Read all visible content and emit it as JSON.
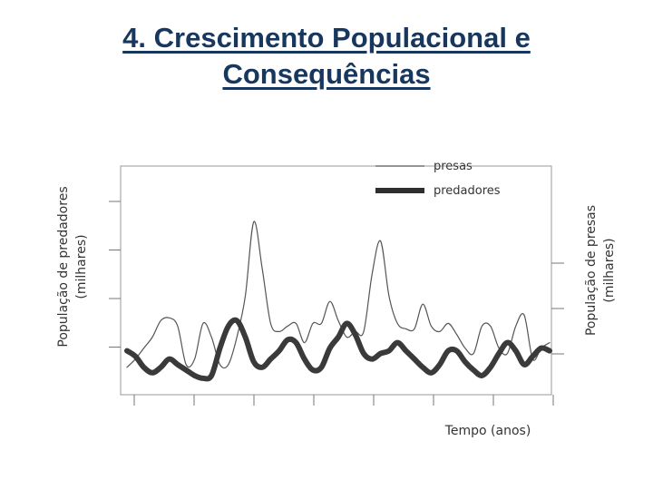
{
  "slide": {
    "title_line1": "4. Crescimento Populacional  e",
    "title_line2": "Consequências"
  },
  "chart_data": {
    "type": "line",
    "title": "",
    "xlabel": "Tempo (anos)",
    "ylabel_left": [
      "População de predadores",
      "(milhares)"
    ],
    "ylabel_right": [
      "População de presas",
      "(milhares)"
    ],
    "x_ticks": 8,
    "y_ticks": 4,
    "x": [
      0,
      2,
      4,
      6,
      8,
      10,
      12,
      14,
      16,
      18,
      20,
      22,
      24,
      26,
      28,
      30,
      32,
      34,
      36,
      38,
      40,
      42,
      44,
      46,
      48,
      50,
      52,
      54,
      56,
      58,
      60,
      62,
      64,
      66,
      68,
      70,
      72,
      74,
      76,
      78,
      80,
      82,
      84,
      86,
      88,
      90,
      92,
      94,
      96,
      98,
      100
    ],
    "xlim": [
      0,
      100
    ],
    "ylim": [
      0,
      8
    ],
    "series": [
      {
        "name": "presas",
        "style": "thin",
        "color": "#555555",
        "values": [
          0.9,
          1.2,
          1.6,
          2.0,
          2.6,
          2.7,
          2.4,
          1.0,
          1.2,
          2.5,
          2.0,
          1.0,
          1.0,
          2.0,
          3.5,
          6.2,
          4.5,
          2.5,
          2.2,
          2.4,
          2.5,
          1.8,
          2.5,
          2.5,
          3.3,
          2.6,
          2.0,
          2.2,
          2.2,
          4.3,
          5.5,
          3.5,
          2.5,
          2.3,
          2.3,
          3.2,
          2.4,
          2.2,
          2.5,
          2.1,
          1.6,
          1.4,
          2.4,
          2.4,
          1.6,
          1.4,
          2.4,
          2.8,
          1.2,
          1.6,
          1.8
        ]
      },
      {
        "name": "predadores",
        "style": "thick",
        "color": "#3a3a3a",
        "values": [
          1.5,
          1.3,
          0.9,
          0.7,
          0.9,
          1.2,
          1.0,
          0.8,
          0.6,
          0.5,
          0.6,
          1.6,
          2.4,
          2.6,
          2.0,
          1.1,
          0.9,
          1.2,
          1.5,
          1.9,
          1.8,
          1.2,
          0.8,
          0.9,
          1.6,
          2.0,
          2.5,
          2.1,
          1.4,
          1.2,
          1.4,
          1.5,
          1.8,
          1.5,
          1.2,
          0.9,
          0.7,
          1.0,
          1.5,
          1.5,
          1.1,
          0.8,
          0.6,
          0.9,
          1.4,
          1.8,
          1.5,
          1.0,
          1.3,
          1.6,
          1.5
        ]
      }
    ],
    "legend": {
      "position": "top-right",
      "entries": [
        "presas",
        "predadores"
      ]
    }
  }
}
